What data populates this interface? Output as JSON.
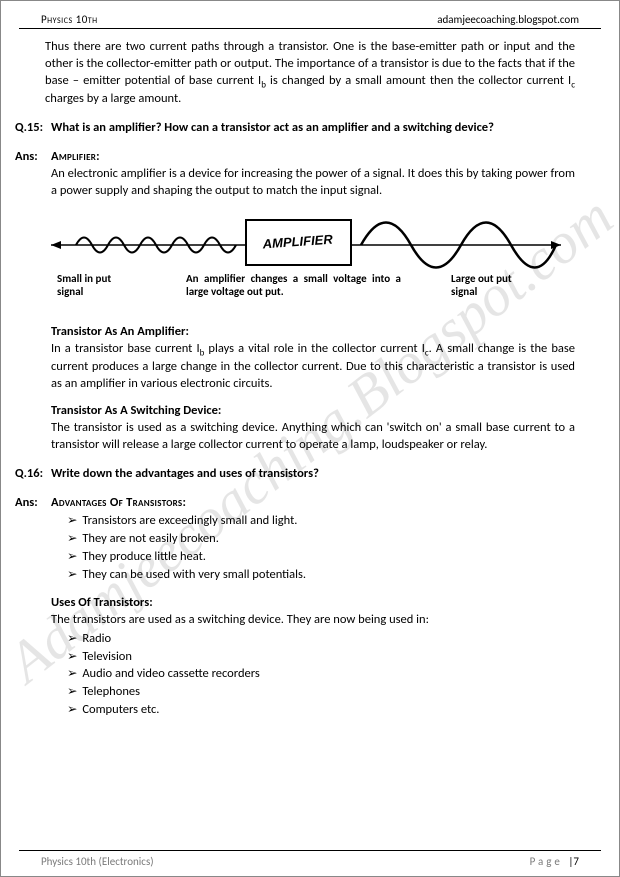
{
  "header": {
    "left": "Physics 10th",
    "right": "adamjeecoaching.blogspot.com"
  },
  "watermark": "Adamjeecoaching.Blogspot.com",
  "intro_para": "Thus there are two current paths through a transistor. One is the base-emitter path or input and the other is the collector-emitter path or output. The importance of a transistor is due to the facts that if the base – emitter potential of base current I",
  "intro_para_sub1": "b",
  "intro_para_2": " is changed by a small amount then the collector current I",
  "intro_para_sub2": "c",
  "intro_para_3": " charges by a large amount.",
  "q15": {
    "label": "Q.15:",
    "text": "What is an amplifier? How can a transistor act as an amplifier and a switching device?"
  },
  "ans15": {
    "label": "Ans:",
    "heading": "Amplifier:",
    "p1": "An electronic amplifier is a device for increasing the power of a signal. It does this by taking power from a power supply and shaping the output to match the input signal.",
    "diagram": {
      "box_label": "AMPLIFIER",
      "left_label": "Small in put\nsignal",
      "right_label": "Large out put\nsignal",
      "caption": "An amplifier changes a small voltage into a large voltage out put."
    },
    "sub1_head": "Transistor As An Amplifier:",
    "sub1_text_a": "In a transistor base current I",
    "sub1_sub1": "b",
    "sub1_text_b": " plays a vital role in the collector current I",
    "sub1_sub2": "c",
    "sub1_text_c": ". A small change is the base current produces a large change in the collector current. Due to this characteristic a transistor is used as an amplifier in various electronic circuits.",
    "sub2_head": "Transistor As A Switching Device:",
    "sub2_text": "The transistor is used as a switching device. Anything which can 'switch on' a small base current to a transistor will release a large collector current to operate a lamp, loudspeaker or relay."
  },
  "q16": {
    "label": "Q.16:",
    "text": "Write down the advantages and uses of transistors?"
  },
  "ans16": {
    "label": "Ans:",
    "heading": "Advantages Of Transistors:",
    "advantages": [
      "Transistors are exceedingly small and light.",
      "They are not easily broken.",
      "They produce little heat.",
      "They can be used with very small potentials."
    ],
    "uses_head": "Uses Of Transistors:",
    "uses_intro": "The transistors are used as a switching device. They are now being used in:",
    "uses": [
      "Radio",
      "Television",
      "Audio and video cassette recorders",
      "Telephones",
      "Computers etc."
    ]
  },
  "footer": {
    "left": "Physics 10th (Electronics)",
    "right_word": "Page",
    "right_num": "|7"
  }
}
